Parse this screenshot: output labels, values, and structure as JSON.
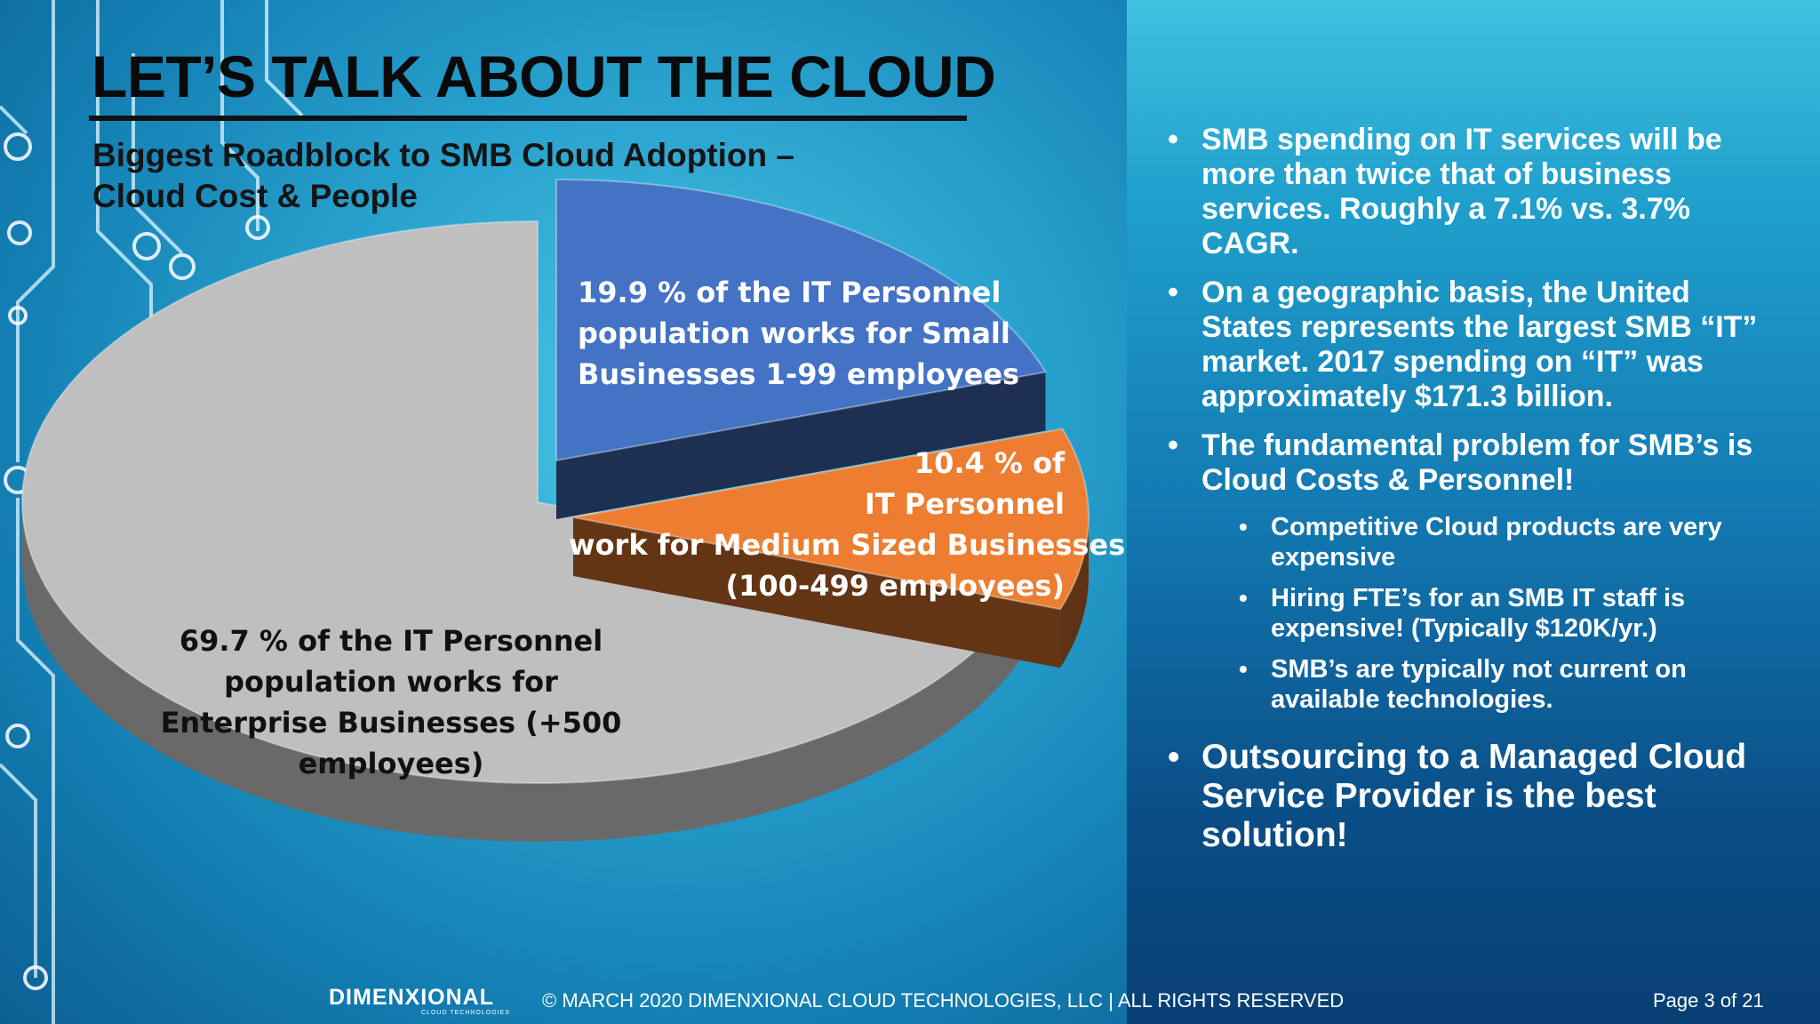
{
  "slide": {
    "title": "LET’S TALK ABOUT THE CLOUD",
    "subtitle_line1": "Biggest Roadblock to SMB Cloud Adoption –",
    "subtitle_line2": "Cloud Cost & People"
  },
  "chart_data": {
    "type": "pie",
    "style": "3d-exploded",
    "slices": [
      {
        "value": 19.9,
        "color": "#4472c4",
        "label_lines": [
          "19.9 % of the IT Personnel",
          "population works for Small",
          "Businesses  1-99 employees"
        ]
      },
      {
        "value": 10.4,
        "color": "#ed7d31",
        "label_lines": [
          "10.4 % of",
          "IT Personnel",
          "work for Medium Sized Businesses",
          "(100-499 employees)"
        ]
      },
      {
        "value": 69.7,
        "color": "#bfbfbf",
        "label_lines": [
          "69.7 % of the IT Personnel",
          "population works for",
          "Enterprise Businesses (+500",
          "employees)"
        ]
      }
    ]
  },
  "bullets": {
    "b1": "SMB spending on IT services will be more than twice that of business services. Roughly a 7.1% vs. 3.7% CAGR.",
    "b2": "On a geographic basis, the United States represents the largest SMB “IT” market. 2017 spending on “IT” was approximately $171.3 billion.",
    "b3": "The fundamental problem for SMB’s is Cloud Costs & Personnel!",
    "sub1": "Competitive Cloud products are very expensive",
    "sub2": "Hiring FTE’s for an SMB IT staff is expensive! (Typically $120K/yr.)",
    "sub3": "SMB’s are typically not current on available technologies.",
    "b4": "Outsourcing to a Managed Cloud Service Provider is the best solution!"
  },
  "footer": {
    "logo_text": "DIMENXIONAL",
    "logo_tagline": "CLOUD TECHNOLOGIES",
    "copyright": "© MARCH 2020 DIMENXIONAL CLOUD TECHNOLOGIES, LLC | ALL RIGHTS RESERVED",
    "page": "Page 3 of 21"
  }
}
